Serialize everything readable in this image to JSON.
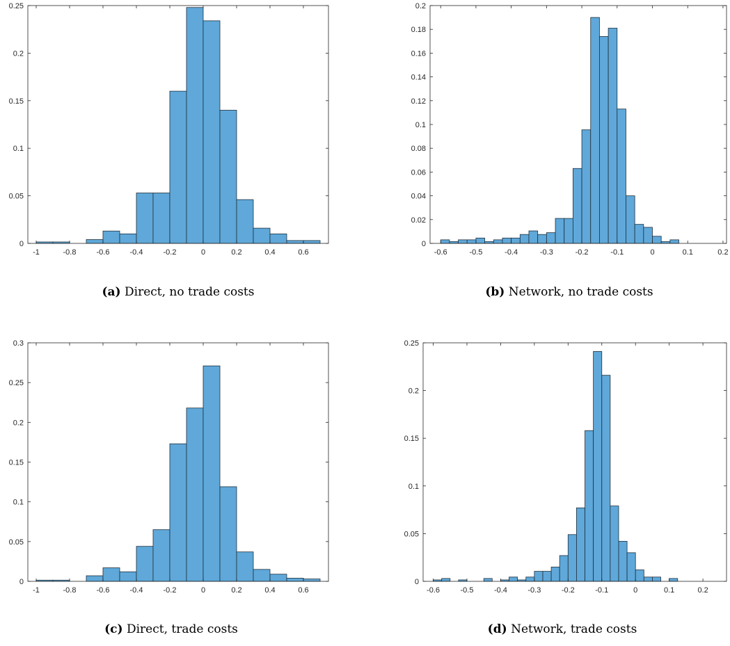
{
  "colors": {
    "bar_fill": "#5fa8d9",
    "bar_stroke": "#1f2f3d",
    "axis": "#262626",
    "background": "#ffffff"
  },
  "chart_data": [
    {
      "type": "bar",
      "panel_label": "(a)",
      "caption": "Direct, no trade costs",
      "bin_edges": [
        -1.0,
        -0.9,
        -0.8,
        -0.7,
        -0.6,
        -0.5,
        -0.4,
        -0.3,
        -0.2,
        -0.1,
        0.0,
        0.1,
        0.2,
        0.3,
        0.4,
        0.5,
        0.6,
        0.7
      ],
      "values": [
        0.0015,
        0.0015,
        0.0,
        0.004,
        0.013,
        0.01,
        0.053,
        0.053,
        0.16,
        0.248,
        0.234,
        0.14,
        0.046,
        0.016,
        0.01,
        0.003,
        0.003
      ],
      "xlim": [
        -1.05,
        0.75
      ],
      "ylim": [
        0,
        0.25
      ],
      "xticks": [
        -1,
        -0.8,
        -0.6,
        -0.4,
        -0.2,
        0,
        0.2,
        0.4,
        0.6
      ],
      "xtick_labels": [
        "-1",
        "-0.8",
        "-0.6",
        "-0.4",
        "-0.2",
        "0",
        "0.2",
        "0.4",
        "0.6"
      ],
      "yticks": [
        0,
        0.05,
        0.1,
        0.15,
        0.2,
        0.25
      ],
      "ytick_labels": [
        "0",
        "0.05",
        "0.1",
        "0.15",
        "0.2",
        "0.25"
      ]
    },
    {
      "type": "bar",
      "panel_label": "(b)",
      "caption": "Network, no trade costs",
      "bin_edges": [
        -0.6,
        -0.575,
        -0.55,
        -0.525,
        -0.5,
        -0.475,
        -0.45,
        -0.425,
        -0.4,
        -0.375,
        -0.35,
        -0.325,
        -0.3,
        -0.275,
        -0.25,
        -0.225,
        -0.2,
        -0.175,
        -0.15,
        -0.125,
        -0.1,
        -0.075,
        -0.05,
        -0.025,
        0.0,
        0.025,
        0.05,
        0.075,
        0.1,
        0.125,
        0.15,
        0.175
      ],
      "values": [
        0.003,
        0.0015,
        0.003,
        0.003,
        0.0045,
        0.0015,
        0.003,
        0.0045,
        0.0045,
        0.0075,
        0.0105,
        0.0075,
        0.009,
        0.021,
        0.021,
        0.063,
        0.0955,
        0.19,
        0.174,
        0.181,
        0.113,
        0.04,
        0.016,
        0.0135,
        0.006,
        0.0015,
        0.003,
        0.0,
        0.0,
        0.0,
        0.0
      ],
      "xlim": [
        -0.63,
        0.21
      ],
      "ylim": [
        0,
        0.2
      ],
      "xticks": [
        -0.6,
        -0.5,
        -0.4,
        -0.3,
        -0.2,
        -0.1,
        0,
        0.1,
        0.2
      ],
      "xtick_labels": [
        "-0.6",
        "-0.5",
        "-0.4",
        "-0.3",
        "-0.2",
        "-0.1",
        "0",
        "0.1",
        "0.2"
      ],
      "yticks": [
        0,
        0.02,
        0.04,
        0.06,
        0.08,
        0.1,
        0.12,
        0.14,
        0.16,
        0.18,
        0.2
      ],
      "ytick_labels": [
        "0",
        "0.02",
        "0.04",
        "0.06",
        "0.08",
        "0.1",
        "0.12",
        "0.14",
        "0.16",
        "0.18",
        "0.2"
      ]
    },
    {
      "type": "bar",
      "panel_label": "(c)",
      "caption": "Direct, trade costs",
      "bin_edges": [
        -1.0,
        -0.9,
        -0.8,
        -0.7,
        -0.6,
        -0.5,
        -0.4,
        -0.3,
        -0.2,
        -0.1,
        0.0,
        0.1,
        0.2,
        0.3,
        0.4,
        0.5,
        0.6,
        0.7
      ],
      "values": [
        0.0015,
        0.0015,
        0.0,
        0.007,
        0.017,
        0.012,
        0.044,
        0.065,
        0.173,
        0.218,
        0.271,
        0.119,
        0.037,
        0.015,
        0.009,
        0.004,
        0.003
      ],
      "xlim": [
        -1.05,
        0.75
      ],
      "ylim": [
        0,
        0.3
      ],
      "xticks": [
        -1,
        -0.8,
        -0.6,
        -0.4,
        -0.2,
        0,
        0.2,
        0.4,
        0.6
      ],
      "xtick_labels": [
        "-1",
        "-0.8",
        "-0.6",
        "-0.4",
        "-0.2",
        "0",
        "0.2",
        "0.4",
        "0.6"
      ],
      "yticks": [
        0,
        0.05,
        0.1,
        0.15,
        0.2,
        0.25,
        0.3
      ],
      "ytick_labels": [
        "0",
        "0.05",
        "0.1",
        "0.15",
        "0.2",
        "0.25",
        "0.3"
      ]
    },
    {
      "type": "bar",
      "panel_label": "(d)",
      "caption": "Network, trade costs",
      "bin_edges": [
        -0.6,
        -0.575,
        -0.55,
        -0.525,
        -0.5,
        -0.475,
        -0.45,
        -0.425,
        -0.4,
        -0.375,
        -0.35,
        -0.325,
        -0.3,
        -0.275,
        -0.25,
        -0.225,
        -0.2,
        -0.175,
        -0.15,
        -0.125,
        -0.1,
        -0.075,
        -0.05,
        -0.025,
        0.0,
        0.025,
        0.05,
        0.075,
        0.1,
        0.125,
        0.15,
        0.175,
        0.2,
        0.225,
        0.25
      ],
      "values": [
        0.0015,
        0.003,
        0.0,
        0.0015,
        0.0,
        0.0,
        0.003,
        0.0,
        0.0015,
        0.0045,
        0.0015,
        0.0045,
        0.0105,
        0.0105,
        0.015,
        0.027,
        0.049,
        0.077,
        0.158,
        0.241,
        0.216,
        0.079,
        0.042,
        0.03,
        0.012,
        0.0045,
        0.0045,
        0.0,
        0.003,
        0.0,
        0.0,
        0.0,
        0.0,
        0.0
      ],
      "xlim": [
        -0.63,
        0.27
      ],
      "ylim": [
        0,
        0.25
      ],
      "xticks": [
        -0.6,
        -0.5,
        -0.4,
        -0.3,
        -0.2,
        -0.1,
        0,
        0.1,
        0.2
      ],
      "xtick_labels": [
        "-0.6",
        "-0.5",
        "-0.4",
        "-0.3",
        "-0.2",
        "-0.1",
        "0",
        "0.1",
        "0.2"
      ],
      "yticks": [
        0,
        0.05,
        0.1,
        0.15,
        0.2,
        0.25
      ],
      "ytick_labels": [
        "0",
        "0.05",
        "0.1",
        "0.15",
        "0.2",
        "0.25"
      ]
    }
  ]
}
